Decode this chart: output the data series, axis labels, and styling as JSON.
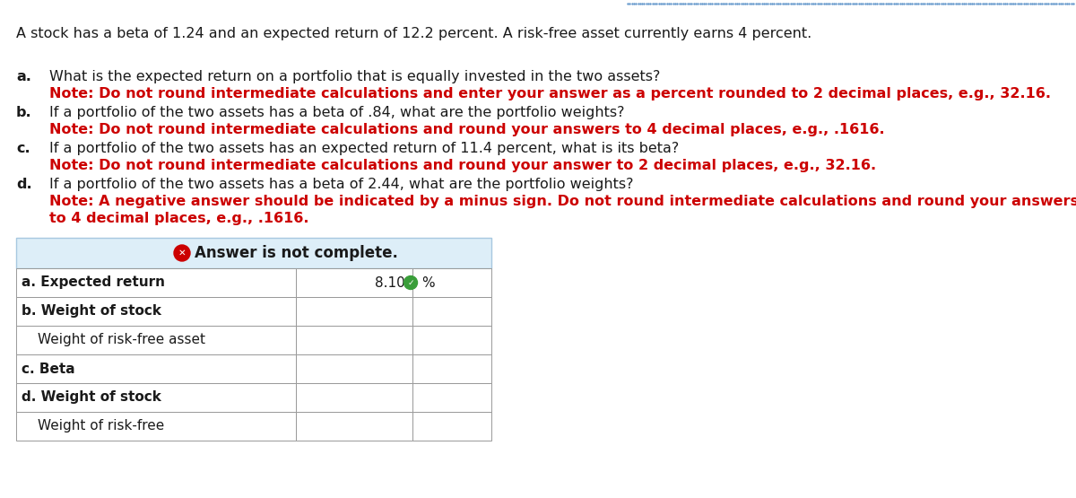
{
  "intro_text": "A stock has a beta of 1.24 and an expected return of 12.2 percent. A risk-free asset currently earns 4 percent.",
  "questions": [
    {
      "label": "a.",
      "question": "What is the expected return on a portfolio that is equally invested in the two assets?",
      "note_lines": [
        "Note: Do not round intermediate calculations and enter your answer as a percent rounded to 2 decimal places, e.g., 32.16."
      ]
    },
    {
      "label": "b.",
      "question": "If a portfolio of the two assets has a beta of .84, what are the portfolio weights?",
      "note_lines": [
        "Note: Do not round intermediate calculations and round your answers to 4 decimal places, e.g., .1616."
      ]
    },
    {
      "label": "c.",
      "question": "If a portfolio of the two assets has an expected return of 11.4 percent, what is its beta?",
      "note_lines": [
        "Note: Do not round intermediate calculations and round your answer to 2 decimal places, e.g., 32.16."
      ]
    },
    {
      "label": "d.",
      "question": "If a portfolio of the two assets has a beta of 2.44, what are the portfolio weights?",
      "note_lines": [
        "Note: A negative answer should be indicated by a minus sign. Do not round intermediate calculations and round your answers",
        "to 4 decimal places, e.g., .1616."
      ]
    }
  ],
  "answer_banner_text": "Answer is not complete.",
  "banner_bg": "#ddeef8",
  "banner_border": "#a8c8e0",
  "table_rows": [
    {
      "label": "a. Expected return",
      "bold": true,
      "value": "8.10",
      "has_check": true,
      "unit": "%",
      "indent": false
    },
    {
      "label": "b. Weight of stock",
      "bold": true,
      "value": "",
      "has_check": false,
      "unit": "",
      "indent": false
    },
    {
      "label": "Weight of risk-free asset",
      "bold": false,
      "value": "",
      "has_check": false,
      "unit": "",
      "indent": true
    },
    {
      "label": "c. Beta",
      "bold": true,
      "value": "",
      "has_check": false,
      "unit": "",
      "indent": false
    },
    {
      "label": "d. Weight of stock",
      "bold": true,
      "value": "",
      "has_check": false,
      "unit": "",
      "indent": false
    },
    {
      "label": "Weight of risk-free",
      "bold": false,
      "value": "",
      "has_check": false,
      "unit": "",
      "indent": true
    }
  ],
  "note_color": "#cc0000",
  "text_color": "#1a1a1a",
  "bg_color": "#ffffff",
  "dot_color": "#6699cc",
  "base_fontsize": 11.5,
  "table_fontsize": 11.0
}
